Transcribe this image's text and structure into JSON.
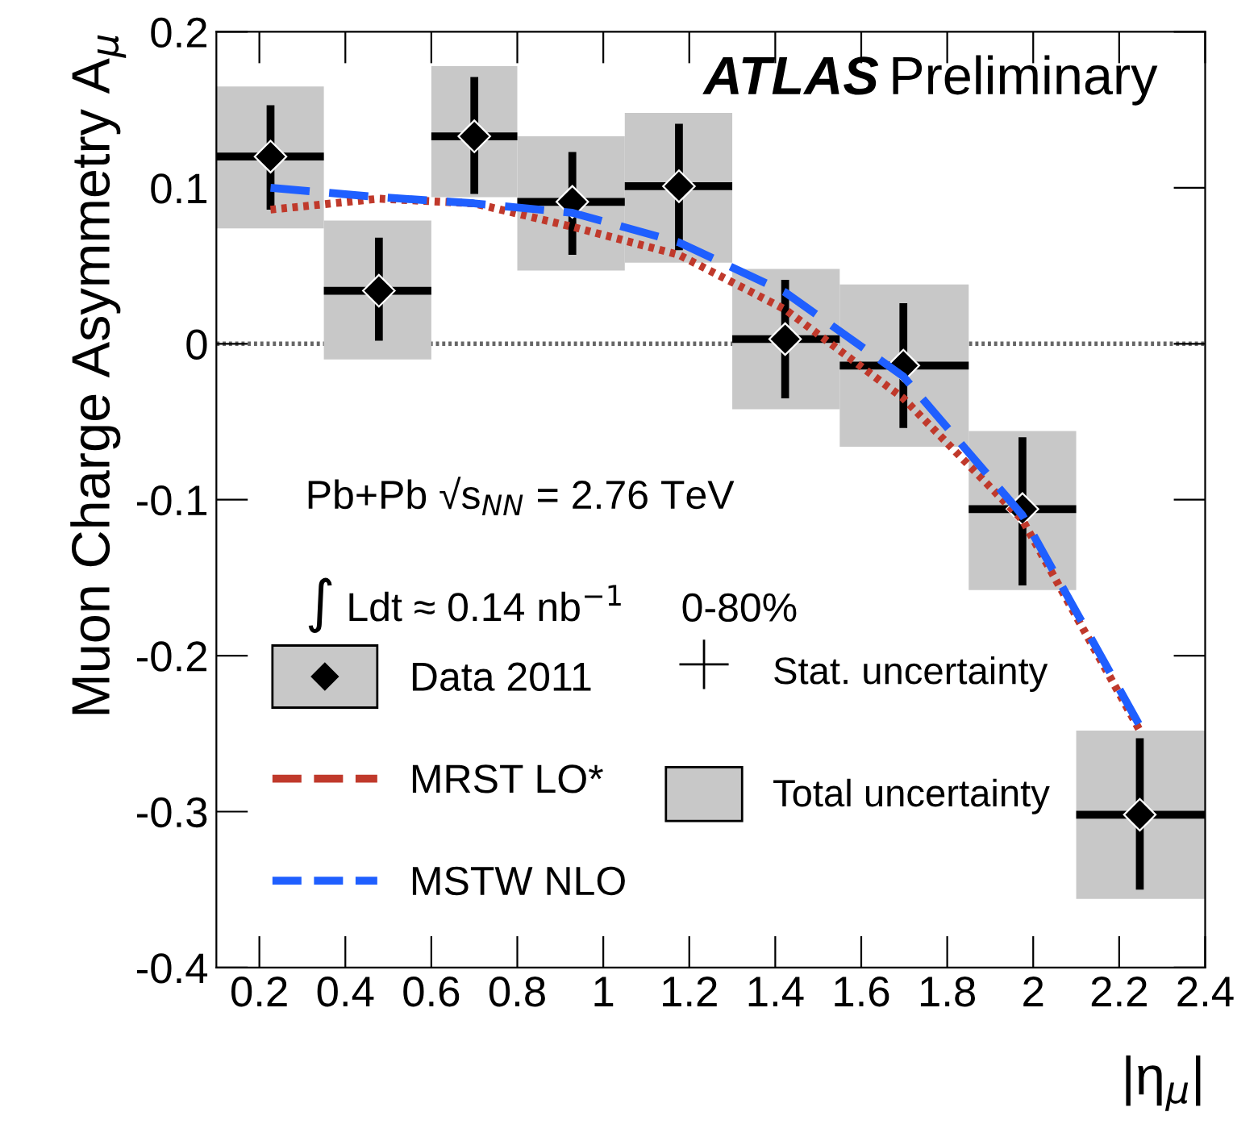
{
  "chart_data": {
    "type": "scatter",
    "xlabel": "|η$_{μ}$|",
    "ylabel": "Muon Charge Asymmetry A$_{μ}$",
    "xlim": [
      0.1,
      2.4
    ],
    "xticks": [
      0.2,
      0.4,
      0.6,
      0.8,
      1,
      1.2,
      1.4,
      1.6,
      1.8,
      2,
      2.2,
      2.4
    ],
    "ylim": [
      -0.4,
      0.2
    ],
    "yticks": [
      -0.4,
      -0.3,
      -0.2,
      -0.1,
      0,
      0.1,
      0.2
    ],
    "legend": "bottom left",
    "ref_lines": [
      {
        "axis": "y",
        "value": 0,
        "color": "#666666",
        "line_style": "dotted"
      }
    ],
    "annotations": [
      "ATLAS",
      "Preliminary",
      "Pb+Pb √s$_{NN}$ = 2.76 TeV",
      "∫ Ldt ≈ 0.14 nb$^{−1}$",
      "0-80%",
      "Stat. uncertainty"
    ],
    "series": [
      {
        "name": "Total uncertainty",
        "type": "histogram",
        "color": "#c8c8c8",
        "bins": [
          0.1,
          0.35,
          0.6,
          0.8,
          1.05,
          1.3,
          1.55,
          1.85,
          2.1,
          2.4
        ],
        "base": [
          0.074,
          -0.01,
          0.094,
          0.047,
          0.052,
          -0.042,
          -0.066,
          -0.158,
          -0.356
        ],
        "values": [
          0.091,
          0.089,
          0.084,
          0.086,
          0.096,
          0.09,
          0.104,
          0.102,
          0.108
        ]
      },
      {
        "name": "Data 2011",
        "marker": "diamond",
        "color": "#000000",
        "x": [
          0.226,
          0.478,
          0.7,
          0.928,
          1.176,
          1.423,
          1.698,
          1.975,
          2.248
        ],
        "values": [
          0.12,
          0.034,
          0.133,
          0.091,
          0.101,
          0.003,
          -0.014,
          -0.106,
          -0.302
        ],
        "errors": [
          [
            0.086,
            0.153
          ],
          [
            0.002,
            0.068
          ],
          [
            0.096,
            0.171
          ],
          [
            0.057,
            0.123
          ],
          [
            0.06,
            0.141
          ],
          [
            -0.035,
            0.041
          ],
          [
            -0.054,
            0.026
          ],
          [
            -0.155,
            -0.06
          ],
          [
            -0.35,
            -0.253
          ]
        ],
        "xerrors": [
          [
            0.1,
            0.35
          ],
          [
            0.35,
            0.6
          ],
          [
            0.6,
            0.8
          ],
          [
            0.8,
            1.05
          ],
          [
            1.05,
            1.3
          ],
          [
            1.3,
            1.55
          ],
          [
            1.55,
            1.85
          ],
          [
            1.85,
            2.1
          ],
          [
            2.1,
            2.4
          ]
        ]
      },
      {
        "name": "MRST LO*",
        "type": "line",
        "line_style": "dotted",
        "color": "#c0392b",
        "x": [
          0.226,
          0.478,
          0.7,
          0.928,
          1.176,
          1.423,
          1.698,
          1.975,
          2.248
        ],
        "values": [
          0.086,
          0.093,
          0.09,
          0.075,
          0.057,
          0.022,
          -0.035,
          -0.113,
          -0.248
        ]
      },
      {
        "name": "MSTW NLO",
        "type": "line",
        "line_style": "dashed",
        "color": "#1f5fff",
        "x": [
          0.226,
          0.478,
          0.7,
          0.928,
          1.176,
          1.423,
          1.698,
          1.975,
          2.248
        ],
        "values": [
          0.1,
          0.094,
          0.09,
          0.084,
          0.065,
          0.033,
          -0.021,
          -0.11,
          -0.245
        ]
      }
    ]
  }
}
